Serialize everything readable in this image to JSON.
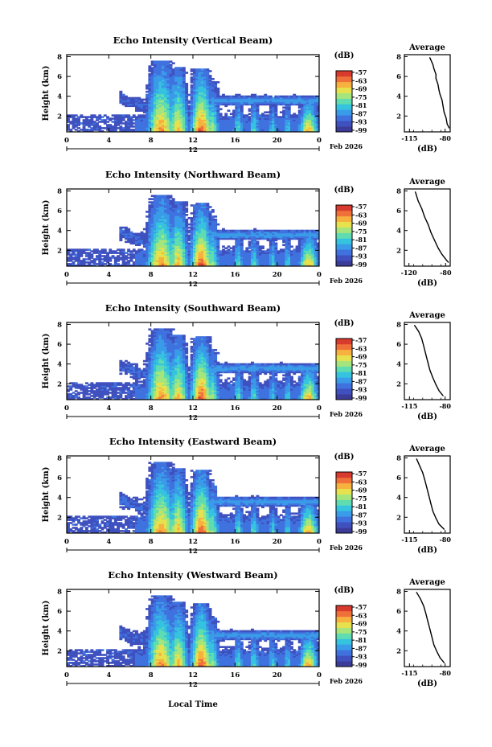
{
  "x_axis_label": "Local Time",
  "date_label": "Feb 2026",
  "colorbar_unit": "(dB)",
  "avg_title": "Average",
  "avg_xlabel": "(dB)",
  "colors": {
    "scale": [
      "#3b3c9a",
      "#3f50bf",
      "#3f72df",
      "#3a9be8",
      "#35c3df",
      "#5fdcb0",
      "#a6e57b",
      "#e7e14e",
      "#f7b13e",
      "#f0703a",
      "#d93a2e"
    ],
    "no_data": "#ffffff"
  },
  "chart_data": [
    {
      "type": "heatmap",
      "title": "Echo Intensity (Vertical Beam)",
      "ylabel": "Height (km)",
      "x_ticks": [
        "0",
        "4",
        "8",
        "12",
        "16",
        "20",
        "0"
      ],
      "x_sub": "12",
      "y_ticks": [
        "2",
        "4",
        "6",
        "8"
      ],
      "xlim": [
        0,
        24
      ],
      "ylim": [
        0.4,
        8.2
      ],
      "colorbar_ticks": [
        "-57",
        "-63",
        "-69",
        "-75",
        "-81",
        "-87",
        "-93",
        "-99"
      ],
      "clim": [
        -99,
        -57
      ],
      "average_profile": {
        "type": "line",
        "title": "Average",
        "xlabel": "(dB)",
        "x_ticks": [
          "-115",
          "-80"
        ],
        "xlim": [
          -120,
          -75
        ],
        "y_ticks": [
          "2",
          "4",
          "6",
          "8"
        ],
        "ylim": [
          0.4,
          8.2
        ],
        "points": [
          [
            -95,
            7.9
          ],
          [
            -92,
            7.2
          ],
          [
            -91,
            6.8
          ],
          [
            -89,
            6.2
          ],
          [
            -89,
            5.8
          ],
          [
            -87,
            5.2
          ],
          [
            -86,
            4.6
          ],
          [
            -85,
            4.2
          ],
          [
            -83,
            3.6
          ],
          [
            -82,
            3.0
          ],
          [
            -81,
            2.4
          ],
          [
            -79,
            1.8
          ],
          [
            -78,
            1.2
          ],
          [
            -76,
            0.8
          ]
        ]
      }
    },
    {
      "type": "heatmap",
      "title": "Echo Intensity (Northward Beam)",
      "ylabel": "Height (km)",
      "x_ticks": [
        "0",
        "4",
        "8",
        "12",
        "16",
        "20",
        "0"
      ],
      "x_sub": "12",
      "y_ticks": [
        "2",
        "4",
        "6",
        "8"
      ],
      "xlim": [
        0,
        24
      ],
      "ylim": [
        0.4,
        8.2
      ],
      "colorbar_ticks": [
        "-57",
        "-63",
        "-69",
        "-75",
        "-81",
        "-87",
        "-93",
        "-99"
      ],
      "clim": [
        -99,
        -57
      ],
      "average_profile": {
        "type": "line",
        "title": "Average",
        "xlabel": "(dB)",
        "x_ticks": [
          "-120",
          "-80"
        ],
        "xlim": [
          -125,
          -75
        ],
        "y_ticks": [
          "2",
          "4",
          "6",
          "8"
        ],
        "ylim": [
          0.4,
          8.2
        ],
        "points": [
          [
            -113,
            7.9
          ],
          [
            -110,
            7.0
          ],
          [
            -106,
            6.2
          ],
          [
            -103,
            5.4
          ],
          [
            -99,
            4.6
          ],
          [
            -96,
            3.8
          ],
          [
            -92,
            3.0
          ],
          [
            -88,
            2.2
          ],
          [
            -84,
            1.6
          ],
          [
            -79,
            1.0
          ],
          [
            -77,
            0.8
          ]
        ]
      }
    },
    {
      "type": "heatmap",
      "title": "Echo Intensity (Southward Beam)",
      "ylabel": "Height (km)",
      "x_ticks": [
        "0",
        "4",
        "8",
        "12",
        "16",
        "20",
        "0"
      ],
      "x_sub": "12",
      "y_ticks": [
        "2",
        "4",
        "6",
        "8"
      ],
      "xlim": [
        0,
        24
      ],
      "ylim": [
        0.4,
        8.2
      ],
      "colorbar_ticks": [
        "-57",
        "-63",
        "-69",
        "-75",
        "-81",
        "-87",
        "-93",
        "-99"
      ],
      "clim": [
        -99,
        -57
      ],
      "average_profile": {
        "type": "line",
        "title": "Average",
        "xlabel": "(dB)",
        "x_ticks": [
          "-115",
          "-80"
        ],
        "xlim": [
          -120,
          -75
        ],
        "y_ticks": [
          "2",
          "4",
          "6",
          "8"
        ],
        "ylim": [
          0.4,
          8.2
        ],
        "points": [
          [
            -110,
            7.9
          ],
          [
            -106,
            7.3
          ],
          [
            -103,
            6.6
          ],
          [
            -101,
            5.8
          ],
          [
            -99,
            5.0
          ],
          [
            -97,
            4.2
          ],
          [
            -95,
            3.4
          ],
          [
            -92,
            2.6
          ],
          [
            -89,
            1.9
          ],
          [
            -86,
            1.3
          ],
          [
            -82,
            0.8
          ]
        ]
      }
    },
    {
      "type": "heatmap",
      "title": "Echo Intensity (Eastward Beam)",
      "ylabel": "Height (km)",
      "x_ticks": [
        "0",
        "4",
        "8",
        "12",
        "16",
        "20",
        "0"
      ],
      "x_sub": "12",
      "y_ticks": [
        "2",
        "4",
        "6",
        "8"
      ],
      "xlim": [
        0,
        24
      ],
      "ylim": [
        0.4,
        8.2
      ],
      "colorbar_ticks": [
        "-57",
        "-63",
        "-69",
        "-75",
        "-81",
        "-87",
        "-93",
        "-99"
      ],
      "clim": [
        -99,
        -57
      ],
      "average_profile": {
        "type": "line",
        "title": "Average",
        "xlabel": "(dB)",
        "x_ticks": [
          "-115",
          "-80"
        ],
        "xlim": [
          -120,
          -75
        ],
        "y_ticks": [
          "2",
          "4",
          "6",
          "8"
        ],
        "ylim": [
          0.4,
          8.2
        ],
        "points": [
          [
            -108,
            7.9
          ],
          [
            -105,
            7.2
          ],
          [
            -102,
            6.5
          ],
          [
            -100,
            5.8
          ],
          [
            -98,
            5.0
          ],
          [
            -96,
            4.2
          ],
          [
            -94,
            3.4
          ],
          [
            -92,
            2.6
          ],
          [
            -89,
            1.9
          ],
          [
            -86,
            1.3
          ],
          [
            -81,
            0.8
          ]
        ]
      }
    },
    {
      "type": "heatmap",
      "title": "Echo Intensity (Westward Beam)",
      "ylabel": "Height (km)",
      "x_ticks": [
        "0",
        "4",
        "8",
        "12",
        "16",
        "20",
        "0"
      ],
      "x_sub": "12",
      "y_ticks": [
        "2",
        "4",
        "6",
        "8"
      ],
      "xlim": [
        0,
        24
      ],
      "ylim": [
        0.4,
        8.2
      ],
      "colorbar_ticks": [
        "-57",
        "-63",
        "-69",
        "-75",
        "-81",
        "-87",
        "-93",
        "-99"
      ],
      "clim": [
        -99,
        -57
      ],
      "average_profile": {
        "type": "line",
        "title": "Average",
        "xlabel": "(dB)",
        "x_ticks": [
          "-115",
          "-80"
        ],
        "xlim": [
          -120,
          -75
        ],
        "y_ticks": [
          "2",
          "4",
          "6",
          "8"
        ],
        "ylim": [
          0.4,
          8.2
        ],
        "points": [
          [
            -108,
            7.9
          ],
          [
            -104,
            7.2
          ],
          [
            -101,
            6.5
          ],
          [
            -99,
            5.8
          ],
          [
            -97,
            5.0
          ],
          [
            -95,
            4.2
          ],
          [
            -93,
            3.4
          ],
          [
            -91,
            2.6
          ],
          [
            -88,
            1.9
          ],
          [
            -85,
            1.3
          ],
          [
            -81,
            0.8
          ]
        ]
      }
    }
  ]
}
